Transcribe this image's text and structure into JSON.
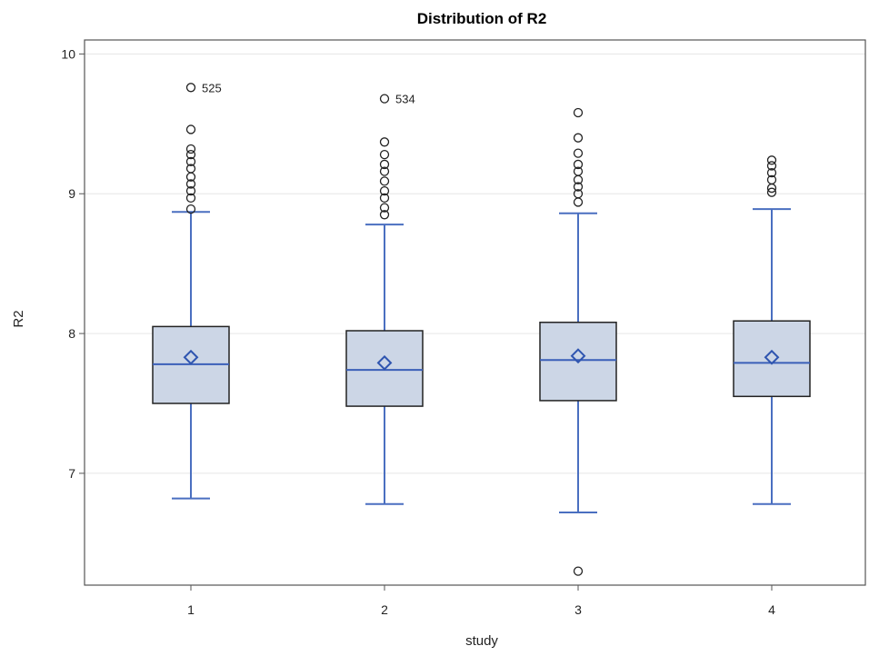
{
  "chart_data": {
    "type": "boxplot",
    "title": "Distribution of R2",
    "xlabel": "study",
    "ylabel": "R2",
    "ylim": [
      6.2,
      10.1
    ],
    "yticks": [
      7,
      8,
      9,
      10
    ],
    "categories": [
      "1",
      "2",
      "3",
      "4"
    ],
    "grid": "horizontal",
    "colors": {
      "box_fill": "#ccd6e6",
      "box_stroke": "#222222",
      "whisker": "#4a6fc0",
      "median": "#3a5fb8",
      "mean_marker": "#2f55b0",
      "outlier": "#222222",
      "grid": "#e6e6e6",
      "frame": "#555555"
    },
    "boxes": [
      {
        "category": "1",
        "whisker_low": 6.82,
        "q1": 7.5,
        "median": 7.78,
        "q3": 8.05,
        "whisker_high": 8.87,
        "mean": 7.83,
        "outliers": [
          8.89,
          8.97,
          9.02,
          9.07,
          9.12,
          9.18,
          9.23,
          9.28,
          9.32,
          9.46,
          9.76
        ],
        "labeled_outliers": [
          {
            "value": 9.76,
            "label": "525"
          }
        ]
      },
      {
        "category": "2",
        "whisker_low": 6.78,
        "q1": 7.48,
        "median": 7.74,
        "q3": 8.02,
        "whisker_high": 8.78,
        "mean": 7.79,
        "outliers": [
          8.85,
          8.9,
          8.97,
          9.02,
          9.09,
          9.16,
          9.21,
          9.28,
          9.37,
          9.68
        ],
        "labeled_outliers": [
          {
            "value": 9.68,
            "label": "534"
          }
        ]
      },
      {
        "category": "3",
        "whisker_low": 6.72,
        "q1": 7.52,
        "median": 7.81,
        "q3": 8.08,
        "whisker_high": 8.86,
        "mean": 7.84,
        "outliers": [
          6.3,
          8.94,
          9.0,
          9.05,
          9.1,
          9.16,
          9.21,
          9.29,
          9.4,
          9.58
        ],
        "labeled_outliers": []
      },
      {
        "category": "4",
        "whisker_low": 6.78,
        "q1": 7.55,
        "median": 7.79,
        "q3": 8.09,
        "whisker_high": 8.89,
        "mean": 7.83,
        "outliers": [
          9.01,
          9.04,
          9.1,
          9.15,
          9.2,
          9.24
        ],
        "labeled_outliers": []
      }
    ]
  }
}
